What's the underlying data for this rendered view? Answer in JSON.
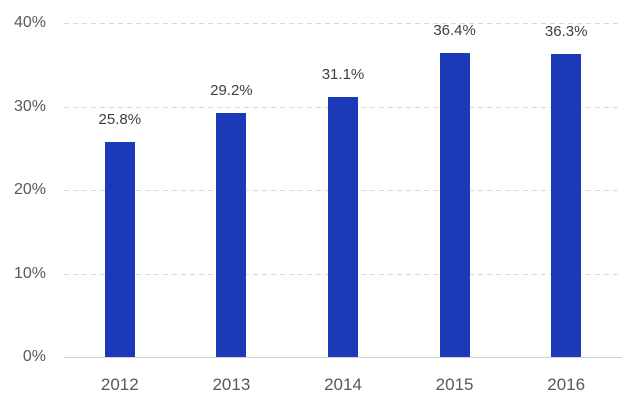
{
  "chart_data": {
    "type": "bar",
    "title": "",
    "xlabel": "",
    "ylabel": "",
    "categories": [
      "2012",
      "2013",
      "2014",
      "2015",
      "2016"
    ],
    "values": [
      25.8,
      29.2,
      31.1,
      36.4,
      36.3
    ],
    "data_labels": [
      "25.8%",
      "29.2%",
      "31.1%",
      "36.4%",
      "36.3%"
    ],
    "ylim": [
      0,
      40
    ],
    "ytick_values": [
      0,
      10,
      20,
      30,
      40
    ],
    "ytick_labels": [
      "0%",
      "10%",
      "20%",
      "30%",
      "40%"
    ],
    "grid": "horizontal-dashed",
    "legend": "none",
    "colors": {
      "bar": "#1c39b8",
      "gridline": "#d9d9d9",
      "axis_line": "#d0d0d0",
      "ytick_label": "#595959",
      "xtick_label": "#595959",
      "data_label": "#3f3f3f",
      "background": "#ffffff"
    }
  }
}
